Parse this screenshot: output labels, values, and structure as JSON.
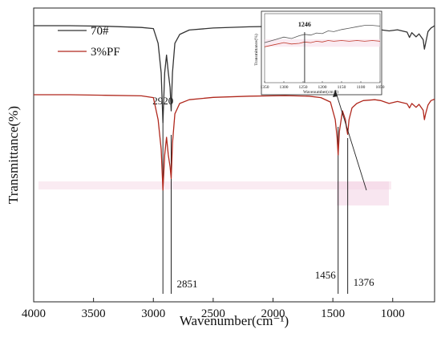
{
  "chart_data": [
    {
      "type": "line",
      "title": "",
      "xlabel": "Wavenumber(cm⁻¹)",
      "ylabel": "Transmittance(%)",
      "xlim": [
        4000,
        650
      ],
      "x_reversed": true,
      "x_ticks": [
        4000,
        3500,
        3000,
        2500,
        2000,
        1500,
        1000
      ],
      "y_ticks_shown": false,
      "legend_position": "top-left",
      "series": [
        {
          "name": "70#",
          "color": "#333333",
          "points": [
            [
              4000,
              94
            ],
            [
              3700,
              94
            ],
            [
              3400,
              93.8
            ],
            [
              3100,
              93.4
            ],
            [
              3000,
              93
            ],
            [
              2960,
              88
            ],
            [
              2935,
              78
            ],
            [
              2920,
              61
            ],
            [
              2905,
              78
            ],
            [
              2890,
              84
            ],
            [
              2875,
              78
            ],
            [
              2860,
              73
            ],
            [
              2851,
              65
            ],
            [
              2840,
              78
            ],
            [
              2820,
              88
            ],
            [
              2780,
              91
            ],
            [
              2700,
              92.5
            ],
            [
              2500,
              93.2
            ],
            [
              2200,
              93.6
            ],
            [
              1900,
              93.8
            ],
            [
              1700,
              93.8
            ],
            [
              1600,
              93.2
            ],
            [
              1520,
              91.5
            ],
            [
              1480,
              86
            ],
            [
              1465,
              79
            ],
            [
              1456,
              76
            ],
            [
              1445,
              84
            ],
            [
              1420,
              89
            ],
            [
              1395,
              86
            ],
            [
              1385,
              83
            ],
            [
              1376,
              81
            ],
            [
              1365,
              86
            ],
            [
              1340,
              90
            ],
            [
              1300,
              91.6
            ],
            [
              1246,
              92.2
            ],
            [
              1150,
              92.4
            ],
            [
              1100,
              92.6
            ],
            [
              1030,
              92.2
            ],
            [
              960,
              92.6
            ],
            [
              880,
              91.8
            ],
            [
              860,
              90
            ],
            [
              840,
              91.6
            ],
            [
              805,
              90.2
            ],
            [
              780,
              91.2
            ],
            [
              745,
              89.2
            ],
            [
              735,
              86
            ],
            [
              725,
              88
            ],
            [
              705,
              92
            ],
            [
              680,
              93.2
            ],
            [
              650,
              94
            ]
          ]
        },
        {
          "name": "3%PF",
          "color": "#b0281d",
          "points": [
            [
              4000,
              70.5
            ],
            [
              3700,
              70.5
            ],
            [
              3400,
              70.3
            ],
            [
              3100,
              70.1
            ],
            [
              3000,
              69.5
            ],
            [
              2960,
              62
            ],
            [
              2935,
              52
            ],
            [
              2920,
              38
            ],
            [
              2905,
              50
            ],
            [
              2890,
              56
            ],
            [
              2875,
              50
            ],
            [
              2860,
              46
            ],
            [
              2851,
              42
            ],
            [
              2840,
              54
            ],
            [
              2820,
              64
            ],
            [
              2780,
              67.5
            ],
            [
              2700,
              68.8
            ],
            [
              2500,
              69.6
            ],
            [
              2200,
              70
            ],
            [
              1900,
              70.2
            ],
            [
              1700,
              70
            ],
            [
              1600,
              69.5
            ],
            [
              1520,
              68
            ],
            [
              1480,
              62
            ],
            [
              1465,
              56
            ],
            [
              1456,
              50
            ],
            [
              1445,
              58
            ],
            [
              1420,
              65
            ],
            [
              1395,
              62
            ],
            [
              1385,
              59
            ],
            [
              1376,
              57
            ],
            [
              1365,
              62
            ],
            [
              1340,
              66
            ],
            [
              1300,
              67.5
            ],
            [
              1246,
              68.5
            ],
            [
              1150,
              68.8
            ],
            [
              1100,
              68.5
            ],
            [
              1030,
              67.5
            ],
            [
              960,
              68.2
            ],
            [
              880,
              67.4
            ],
            [
              860,
              66
            ],
            [
              840,
              67.5
            ],
            [
              805,
              66.2
            ],
            [
              780,
              67.2
            ],
            [
              745,
              65.2
            ],
            [
              735,
              62
            ],
            [
              725,
              64
            ],
            [
              705,
              67
            ],
            [
              680,
              68.5
            ],
            [
              650,
              69
            ]
          ]
        }
      ],
      "annotations": [
        {
          "label": "2920",
          "x": 2920
        },
        {
          "label": "2851",
          "x": 2851
        },
        {
          "label": "1456",
          "x": 1456
        },
        {
          "label": "1376",
          "x": 1376
        }
      ]
    },
    {
      "type": "line",
      "title": "",
      "role": "inset",
      "xlabel": "Wavenumber(cm⁻¹)",
      "ylabel": "Transmittance(%)",
      "xlim": [
        1350,
        1050
      ],
      "x_reversed": true,
      "x_ticks": [
        1350,
        1300,
        1250,
        1200,
        1150,
        1100,
        1050
      ],
      "y_ticks_shown": false,
      "series": [
        {
          "name": "70#",
          "color": "#555555",
          "points": [
            [
              1350,
              58
            ],
            [
              1325,
              62
            ],
            [
              1300,
              66
            ],
            [
              1280,
              64
            ],
            [
              1260,
              68
            ],
            [
              1246,
              70
            ],
            [
              1230,
              69
            ],
            [
              1215,
              72
            ],
            [
              1200,
              71
            ],
            [
              1185,
              75
            ],
            [
              1170,
              74
            ],
            [
              1150,
              77
            ],
            [
              1130,
              79
            ],
            [
              1110,
              81
            ],
            [
              1090,
              83
            ],
            [
              1070,
              83
            ],
            [
              1050,
              82
            ]
          ]
        },
        {
          "name": "3%PF",
          "color": "#c0392b",
          "points": [
            [
              1350,
              52
            ],
            [
              1325,
              55
            ],
            [
              1300,
              58
            ],
            [
              1280,
              56
            ],
            [
              1260,
              57
            ],
            [
              1246,
              59
            ],
            [
              1230,
              58
            ],
            [
              1215,
              60
            ],
            [
              1200,
              59
            ],
            [
              1185,
              61
            ],
            [
              1170,
              60
            ],
            [
              1150,
              61
            ],
            [
              1130,
              60
            ],
            [
              1110,
              61
            ],
            [
              1090,
              60
            ],
            [
              1070,
              61
            ],
            [
              1050,
              60
            ]
          ]
        }
      ],
      "annotations": [
        {
          "label": "1246",
          "x": 1246
        }
      ]
    }
  ]
}
